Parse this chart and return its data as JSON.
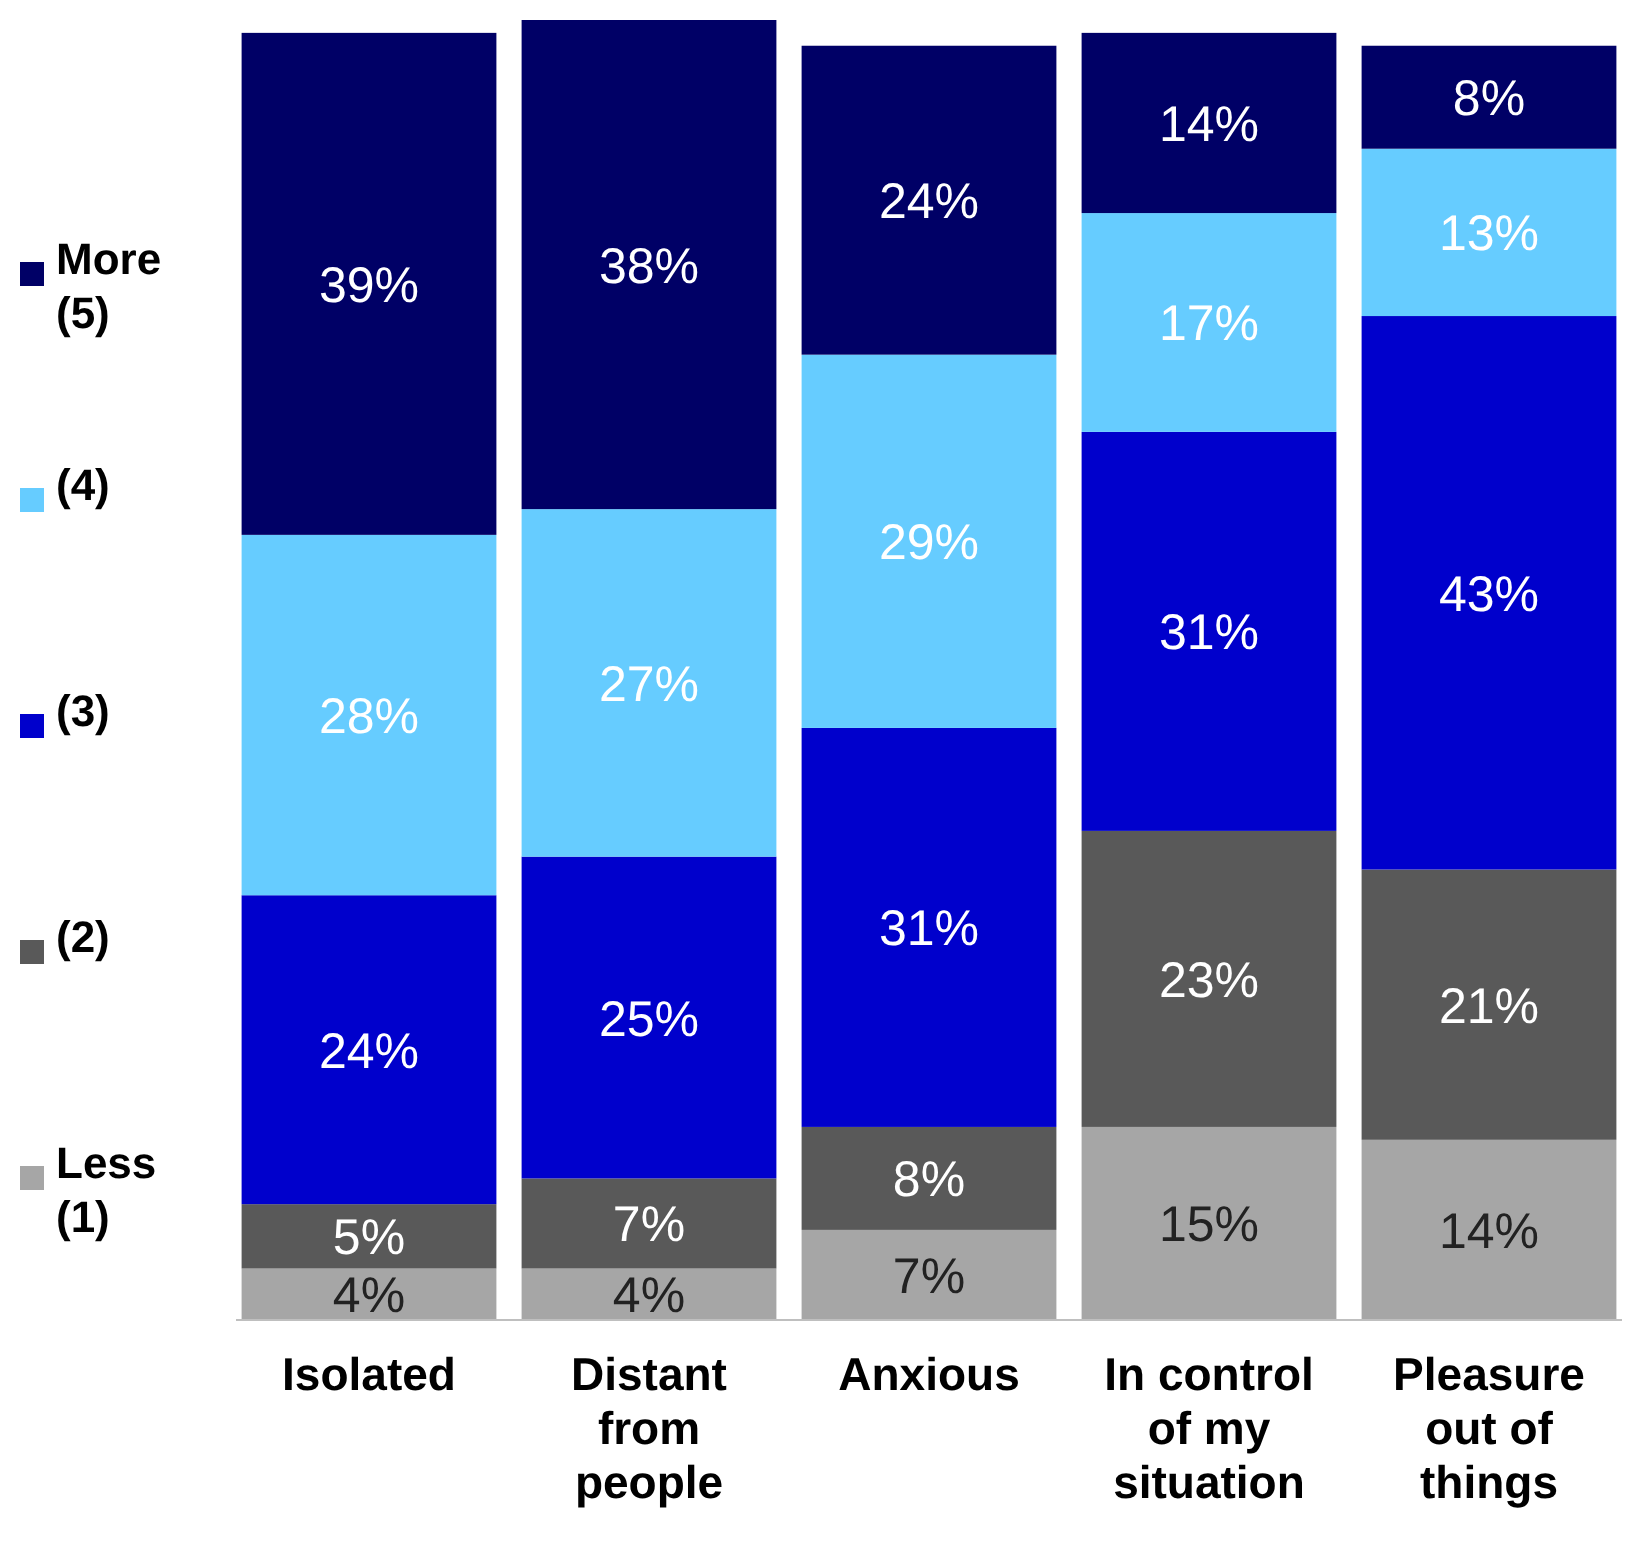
{
  "chart_data": {
    "type": "bar",
    "stacked": true,
    "legend": "left",
    "categories": [
      "Isolated",
      "Distant from people",
      "Anxious",
      "In control of my situation",
      "Pleasure out of things"
    ],
    "series": [
      {
        "name": "Less (1)",
        "color": "#a6a6a6",
        "values": [
          4,
          4,
          7,
          15,
          14
        ],
        "value_labels": [
          "4%",
          "4%",
          "7%",
          "15%",
          "14%"
        ]
      },
      {
        "name": "(2)",
        "color": "#595959",
        "values": [
          5,
          7,
          8,
          23,
          21
        ],
        "value_labels": [
          "5%",
          "7%",
          "8%",
          "23%",
          "21%"
        ]
      },
      {
        "name": "(3)",
        "color": "#0000cc",
        "values": [
          24,
          25,
          31,
          31,
          43
        ],
        "value_labels": [
          "24%",
          "25%",
          "31%",
          "31%",
          "43%"
        ]
      },
      {
        "name": "(4)",
        "color": "#66ccff",
        "values": [
          28,
          27,
          29,
          17,
          13
        ],
        "value_labels": [
          "28%",
          "27%",
          "29%",
          "17%",
          "13%"
        ]
      },
      {
        "name": "More (5)",
        "color": "#000066",
        "values": [
          39,
          38,
          24,
          14,
          8
        ],
        "value_labels": [
          "39%",
          "38%",
          "24%",
          "14%",
          "8%"
        ]
      }
    ]
  }
}
